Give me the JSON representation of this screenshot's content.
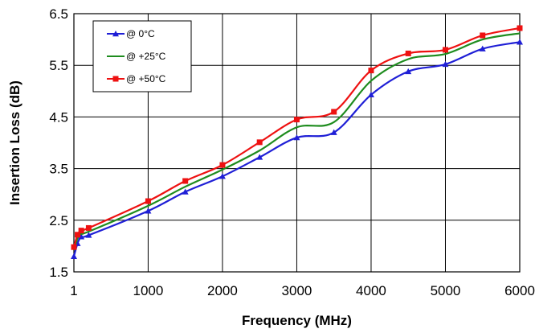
{
  "chart_data": {
    "type": "line",
    "title": "",
    "xlabel": "Frequency (MHz)",
    "ylabel": "Insertion Loss (dB)",
    "xlim": [
      1,
      6000
    ],
    "ylim": [
      1.5,
      6.5
    ],
    "xticks": [
      1,
      1000,
      2000,
      3000,
      4000,
      5000,
      6000
    ],
    "yticks": [
      1.5,
      2.5,
      3.5,
      4.5,
      5.5,
      6.5
    ],
    "xtick_labels": [
      "1",
      "1000",
      "2000",
      "3000",
      "4000",
      "5000",
      "6000"
    ],
    "ytick_labels": [
      "1.5",
      "2.5",
      "3.5",
      "4.5",
      "5.5",
      "6.5"
    ],
    "grid": true,
    "legend_position": "top-left",
    "series": [
      {
        "name": "@ 0°C",
        "color": "#1f1fd6",
        "marker": "triangle",
        "x": [
          1,
          50,
          100,
          200,
          1000,
          1500,
          2000,
          2500,
          3000,
          3500,
          4000,
          4500,
          5000,
          5500,
          6000
        ],
        "y": [
          1.8,
          2.05,
          2.18,
          2.21,
          2.68,
          3.05,
          3.35,
          3.72,
          4.1,
          4.2,
          4.93,
          5.38,
          5.52,
          5.82,
          5.95
        ]
      },
      {
        "name": "@ +25°C",
        "color": "#1e8c1e",
        "marker": "none",
        "x": [
          1,
          50,
          100,
          200,
          1000,
          1500,
          2000,
          2500,
          3000,
          3500,
          4000,
          4500,
          5000,
          5500,
          6000
        ],
        "y": [
          1.92,
          2.15,
          2.24,
          2.28,
          2.78,
          3.15,
          3.48,
          3.85,
          4.3,
          4.4,
          5.2,
          5.62,
          5.72,
          6.0,
          6.12
        ]
      },
      {
        "name": "@ +50°C",
        "color": "#ee1111",
        "marker": "square",
        "x": [
          1,
          50,
          100,
          200,
          1000,
          1500,
          2000,
          2500,
          3000,
          3500,
          4000,
          4500,
          5000,
          5500,
          6000
        ],
        "y": [
          1.98,
          2.22,
          2.3,
          2.35,
          2.87,
          3.26,
          3.57,
          4.01,
          4.45,
          4.6,
          5.4,
          5.73,
          5.8,
          6.08,
          6.22
        ]
      }
    ]
  }
}
